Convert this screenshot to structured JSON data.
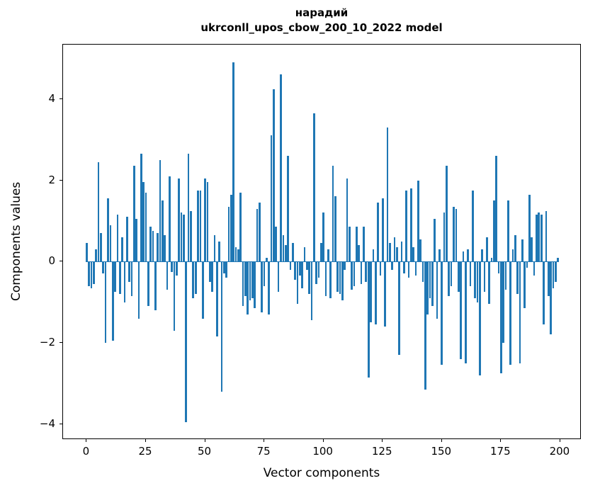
{
  "figure": {
    "title_line1": "нарадий",
    "title_line2": "ukrconll_upos_cbow_200_10_2022 model",
    "xlabel": "Vector components",
    "ylabel": "Components values"
  },
  "chart_data": {
    "type": "bar",
    "title": "нарадий\nukrconll_upos_cbow_200_10_2022 model",
    "xlabel": "Vector components",
    "ylabel": "Components values",
    "bar_color": "#1f77b4",
    "grid": false,
    "legend": false,
    "xlim": [
      -10,
      209
    ],
    "ylim": [
      -4.39,
      5.34
    ],
    "xticks": [
      0,
      25,
      50,
      75,
      100,
      125,
      150,
      175,
      200
    ],
    "xtick_labels": [
      "0",
      "25",
      "50",
      "75",
      "100",
      "125",
      "150",
      "175",
      "200"
    ],
    "yticks": [
      -4,
      -2,
      0,
      2,
      4
    ],
    "ytick_labels": [
      "−4",
      "−2",
      "0",
      "2",
      "4"
    ],
    "x_description": "component index 0..199",
    "values": [
      0.45,
      -0.6,
      -0.65,
      -0.55,
      0.3,
      2.45,
      0.7,
      -0.3,
      -2.0,
      1.55,
      0.9,
      -1.95,
      -0.75,
      1.15,
      -0.8,
      0.6,
      -1.0,
      1.1,
      -0.5,
      -0.85,
      2.35,
      1.05,
      -1.4,
      2.65,
      1.95,
      1.7,
      -1.1,
      0.85,
      0.75,
      -1.2,
      0.7,
      2.5,
      1.5,
      0.65,
      -0.7,
      2.1,
      -0.25,
      -1.7,
      -0.35,
      2.05,
      1.2,
      1.15,
      -3.95,
      2.65,
      1.25,
      -0.9,
      -0.8,
      1.75,
      1.75,
      -1.4,
      2.05,
      1.95,
      -0.5,
      -0.75,
      0.65,
      -1.85,
      0.5,
      -3.2,
      -0.3,
      -0.4,
      1.35,
      1.65,
      4.9,
      0.35,
      0.3,
      1.7,
      -1.1,
      -0.85,
      -1.3,
      -0.95,
      -0.9,
      -1.15,
      1.3,
      1.45,
      -1.25,
      -0.6,
      0.1,
      -1.3,
      3.1,
      4.25,
      0.85,
      -0.75,
      4.6,
      0.65,
      0.4,
      2.6,
      -0.2,
      0.45,
      -0.45,
      -1.05,
      -0.35,
      -0.65,
      0.35,
      -0.2,
      -0.8,
      -1.45,
      3.65,
      -0.55,
      -0.4,
      0.45,
      1.2,
      -0.85,
      0.3,
      -0.9,
      2.35,
      1.6,
      -0.75,
      -0.8,
      -0.95,
      -0.2,
      2.05,
      0.85,
      -0.7,
      -0.6,
      0.85,
      0.4,
      -0.55,
      0.85,
      -0.5,
      -2.85,
      -1.5,
      0.3,
      -1.55,
      1.45,
      -0.35,
      1.55,
      -1.6,
      3.3,
      0.45,
      -0.2,
      0.6,
      0.35,
      -2.3,
      0.5,
      -0.3,
      1.75,
      -0.4,
      1.8,
      0.35,
      -0.35,
      2.0,
      0.55,
      -0.5,
      -3.15,
      -1.3,
      -0.9,
      -1.1,
      1.05,
      -1.4,
      0.3,
      -2.55,
      1.2,
      2.35,
      -0.85,
      -0.6,
      1.35,
      1.3,
      -0.75,
      -2.4,
      0.25,
      -2.5,
      0.3,
      -0.6,
      1.75,
      -0.9,
      -1.0,
      -2.8,
      0.3,
      -0.75,
      0.6,
      -1.05,
      0.1,
      1.5,
      2.6,
      -0.3,
      -2.75,
      -2.0,
      -0.7,
      1.5,
      -2.55,
      0.3,
      0.65,
      -0.8,
      -2.5,
      0.55,
      -1.15,
      -0.15,
      1.65,
      0.6,
      -0.35,
      1.15,
      1.2,
      1.15,
      -1.55,
      1.25,
      -0.85,
      -1.8,
      -0.65,
      -0.5,
      0.1
    ]
  }
}
